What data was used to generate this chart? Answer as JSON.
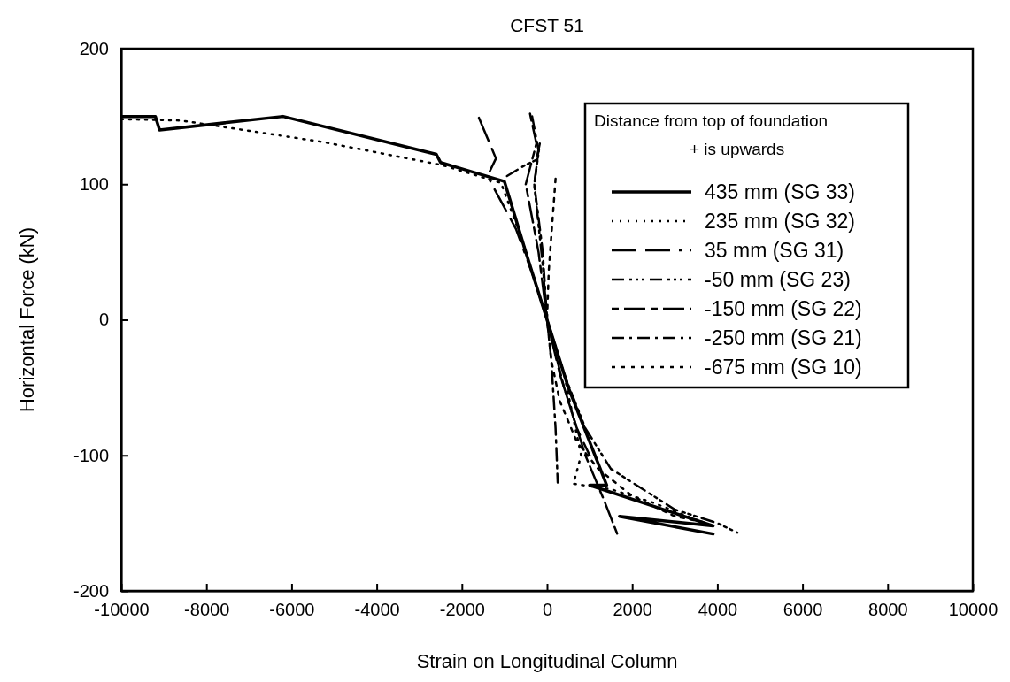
{
  "chart_data": {
    "type": "line",
    "title": "CFST 51",
    "xlabel": "Strain on Longitudinal Column",
    "ylabel": "Horizontal Force (kN)",
    "xlim": [
      -10000,
      10000
    ],
    "xticks": [
      -10000,
      -8000,
      -6000,
      -4000,
      -2000,
      0,
      2000,
      4000,
      6000,
      8000,
      10000
    ],
    "ylim": [
      -200,
      200
    ],
    "yticks": [
      -200,
      -100,
      0,
      100,
      200
    ],
    "grid": false,
    "legend": "top right",
    "marker": "none",
    "legend_title": "Distance from top of foundation\n+ is upwards",
    "series": [
      {
        "name": "435 mm (SG 33)",
        "color": "#000000",
        "line_style": "solid",
        "x": [
          -10000,
          -9200,
          -9100,
          -6200,
          -2600,
          -2500,
          -1000,
          -500,
          0,
          500,
          1000,
          1400,
          1000,
          3900,
          1700,
          3900
        ],
        "values": [
          150,
          150,
          140,
          150,
          122,
          116,
          102,
          50,
          0,
          -50,
          -90,
          -122,
          -122,
          -152,
          -145,
          -158
        ]
      },
      {
        "name": "235 mm (SG 32)",
        "color": "#000000",
        "line_style": "dotted",
        "x": [
          -10000,
          -8600,
          -5240,
          -2450,
          -1080,
          -600,
          0,
          400,
          800,
          620,
          1500,
          2500,
          3700
        ],
        "values": [
          148,
          147,
          131,
          114,
          101,
          60,
          0,
          -40,
          -100,
          -121,
          -125,
          -135,
          -150
        ]
      },
      {
        "name": "35 mm (SG 31)",
        "color": "#000000",
        "line_style": "dashed",
        "x": [
          -1600,
          -1200,
          -1400,
          -730,
          -300,
          0,
          300,
          700,
          1000
        ],
        "values": [
          149,
          119,
          106,
          67,
          30,
          0,
          -40,
          -80,
          -100
        ]
      },
      {
        "name": "-50 mm (SG 23)",
        "color": "#000000",
        "line_style": "dashed",
        "x": [
          -940,
          -520,
          -250,
          -170,
          -300,
          -100,
          0,
          400,
          900,
          1500,
          2000,
          3000,
          4000,
          4470
        ],
        "values": [
          106,
          114,
          118,
          130,
          100,
          40,
          0,
          -40,
          -80,
          -110,
          -120,
          -140,
          -150,
          -157
        ]
      },
      {
        "name": "-150 mm (SG 22)",
        "color": "#000000",
        "line_style": "dashed",
        "x": [
          -400,
          -250,
          -500,
          -200,
          0,
          400,
          900,
          1350,
          1650
        ],
        "values": [
          152,
          130,
          100,
          50,
          0,
          -50,
          -100,
          -134,
          -158
        ]
      },
      {
        "name": "-250 mm (SG 21)",
        "color": "#000000",
        "line_style": "dashed",
        "x": [
          -350,
          -200,
          -300,
          -100,
          0,
          100,
          200,
          250
        ],
        "values": [
          150,
          125,
          100,
          50,
          0,
          -30,
          -80,
          -120
        ]
      },
      {
        "name": "-675 mm (SG 10)",
        "color": "#000000",
        "line_style": "dashed",
        "x": [
          200,
          120,
          40,
          0,
          100,
          300,
          700,
          1200,
          2000,
          3000,
          3800
        ],
        "values": [
          104,
          70,
          36,
          0,
          -30,
          -60,
          -90,
          -110,
          -130,
          -145,
          -150
        ]
      }
    ]
  }
}
